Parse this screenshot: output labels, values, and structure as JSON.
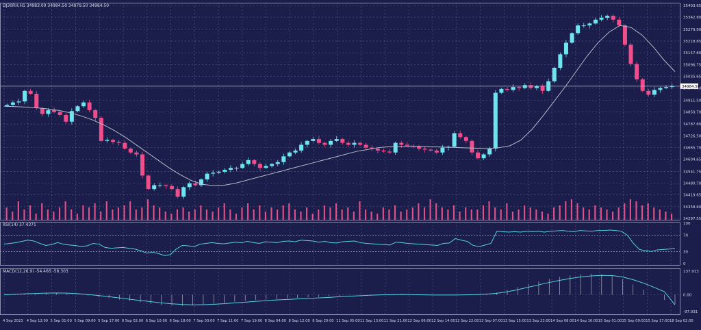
{
  "colors": {
    "background": "#1b1d4a",
    "grid": "#5b5f8e",
    "axis_text": "#d7d9ea",
    "bull": "#6ee4ef",
    "bear": "#f04d8b",
    "ma": "#b8b9c9",
    "volume": "#e0508a",
    "rsi_line": "#58d3e2",
    "macd_line": "#58d3e2",
    "macd_hist": "#c9cad6",
    "price_label_bg": "#ffffff",
    "price_label_fg": "#000000"
  },
  "chart_data": [
    {
      "type": "candlestick",
      "title": "DJ30RH,H1  34983.00 34984.50 34979.50 34984.50",
      "symbol_text": "DJ30RH,H1",
      "ohlc_text": "34983.00 34984.50 34979.50 34984.50",
      "last_price_label": "34984.50",
      "last_price": 34984.5,
      "ylim": [
        34297.55,
        35403.65
      ],
      "y_ticks": [
        "35403.65",
        "35342.80",
        "35279.90",
        "35218.85",
        "35157.80",
        "35096.75",
        "35035.65",
        "34974.60",
        "34911.50",
        "34850.70",
        "34787.80",
        "34726.50",
        "34665.70",
        "34604.65",
        "34541.75",
        "34480.70",
        "34419.65",
        "34358.60",
        "34297.55"
      ],
      "x_ticks": [
        "4 Sep 2023",
        "4 Sep 12:00",
        "5 Sep 01:00",
        "5 Sep 09:00",
        "5 Sep 17:00",
        "6 Sep 02:00",
        "6 Sep 10:00",
        "6 Sep 18:00",
        "7 Sep 03:00",
        "7 Sep 11:00",
        "7 Sep 19:00",
        "8 Sep 04:00",
        "8 Sep 12:00",
        "8 Sep 20:00",
        "11 Sep 05:00",
        "11 Sep 13:00",
        "11 Sep 21:00",
        "12 Sep 06:00",
        "12 Sep 14:00",
        "12 Sep 22:00",
        "13 Sep 07:00",
        "13 Sep 15:00",
        "13 Sep 23:00",
        "14 Sep 08:00",
        "14 Sep 16:00",
        "15 Sep 01:00",
        "15 Sep 09:00",
        "15 Sep 17:00",
        "18 Sep 02:00"
      ],
      "close_path": [
        34888,
        34900,
        34905,
        34960,
        34945,
        34870,
        34840,
        34860,
        34850,
        34835,
        34800,
        34855,
        34880,
        34900,
        34860,
        34820,
        34700,
        34705,
        34695,
        34690,
        34660,
        34640,
        34630,
        34520,
        34450,
        34470,
        34470,
        34465,
        34450,
        34410,
        34460,
        34480,
        34470,
        34500,
        34530,
        34535,
        34540,
        34550,
        34560,
        34560,
        34580,
        34600,
        34580,
        34560,
        34570,
        34580,
        34590,
        34620,
        34640,
        34650,
        34680,
        34700,
        34710,
        34690,
        34680,
        34700,
        34710,
        34690,
        34680,
        34690,
        34680,
        34665,
        34660,
        34650,
        34645,
        34640,
        34690,
        34680,
        34675,
        34670,
        34660,
        34655,
        34650,
        34640,
        34665,
        34670,
        34740,
        34720,
        34700,
        34640,
        34610,
        34630,
        34660,
        34950,
        34970,
        34965,
        34980,
        34975,
        34990,
        34975,
        34985,
        34960,
        35010,
        35080,
        35150,
        35210,
        35260,
        35300,
        35300,
        35310,
        35330,
        35340,
        35350,
        35330,
        35300,
        35200,
        35100,
        35020,
        34960,
        34940,
        34965,
        34975,
        34980,
        34984.5
      ],
      "moving_average": [
        34880,
        34878,
        34876,
        34872,
        34866,
        34858,
        34846,
        34830,
        34810,
        34785,
        34755,
        34720,
        34680,
        34640,
        34600,
        34560,
        34525,
        34495,
        34475,
        34468,
        34470,
        34480,
        34495,
        34510,
        34525,
        34540,
        34555,
        34570,
        34585,
        34600,
        34615,
        34630,
        34645,
        34655,
        34665,
        34670,
        34672,
        34673,
        34672,
        34670,
        34668,
        34666,
        34664,
        34662,
        34660,
        34665,
        34675,
        34705,
        34760,
        34830,
        34905,
        34980,
        35060,
        35140,
        35210,
        35265,
        35300,
        35290,
        35250,
        35190,
        35120,
        35060
      ],
      "volume_relative": [
        0.6,
        0.4,
        0.9,
        0.5,
        0.7,
        0.3,
        0.8,
        0.5,
        0.4,
        0.6,
        0.9,
        0.5,
        0.3,
        0.7,
        0.6,
        0.8,
        0.4,
        0.9,
        0.5,
        0.6,
        0.7,
        0.9,
        0.5,
        0.6,
        1.0,
        0.7,
        0.6,
        0.4,
        0.3,
        0.5,
        0.6,
        0.4,
        0.5,
        0.7,
        0.5,
        0.4,
        0.6,
        0.8,
        0.5,
        0.3,
        0.6,
        0.8,
        0.5,
        0.7,
        0.4,
        0.6,
        0.5,
        0.7,
        0.8,
        0.5,
        0.4,
        0.6,
        0.3,
        0.5,
        0.7,
        0.6,
        0.8,
        0.5,
        0.6,
        0.4,
        0.9,
        0.5,
        0.4,
        0.3,
        0.6,
        0.5,
        0.7,
        0.4,
        0.5,
        0.6,
        0.8,
        0.6,
        1.0,
        0.8,
        0.6,
        0.5,
        0.7,
        0.4,
        0.6,
        0.5,
        0.5,
        0.7,
        0.9,
        0.6,
        0.5,
        0.8,
        0.4,
        0.5,
        0.7,
        0.6,
        0.5,
        0.4,
        0.3,
        0.6,
        0.7,
        0.9,
        1.0,
        0.8,
        0.6,
        0.5,
        0.7,
        0.6,
        0.5,
        0.4,
        0.6,
        0.8,
        1.0,
        0.9,
        0.7,
        0.8,
        0.6,
        0.5,
        0.4,
        0.3
      ]
    },
    {
      "type": "line",
      "title": "RSI(14) 37.4371",
      "ylim": [
        0,
        100
      ],
      "y_ticks": [
        "100",
        "70",
        "30",
        "0"
      ],
      "levels": [
        70,
        30
      ],
      "values": [
        48,
        50,
        52,
        55,
        58,
        56,
        50,
        45,
        47,
        52,
        48,
        46,
        45,
        42,
        44,
        50,
        48,
        40,
        38,
        39,
        40,
        38,
        36,
        32,
        26,
        28,
        25,
        20,
        22,
        36,
        45,
        44,
        42,
        48,
        50,
        52,
        50,
        49,
        51,
        53,
        52,
        55,
        52,
        50,
        54,
        53,
        52,
        55,
        56,
        54,
        58,
        57,
        56,
        53,
        55,
        52,
        51,
        54,
        55,
        56,
        52,
        50,
        49,
        48,
        47,
        46,
        53,
        52,
        50,
        49,
        48,
        47,
        46,
        45,
        50,
        51,
        62,
        58,
        55,
        45,
        42,
        46,
        50,
        80,
        79,
        78,
        79,
        78,
        80,
        79,
        80,
        78,
        80,
        81,
        82,
        80,
        79,
        82,
        81,
        80,
        82,
        82,
        83,
        82,
        80,
        70,
        50,
        35,
        32,
        30,
        34,
        35,
        36,
        37.4371
      ]
    },
    {
      "type": "line",
      "title": "MACD(12,26,9) -54.466 -58.303",
      "ylim": [
        -97.031,
        137.913
      ],
      "y_ticks": [
        "137.913",
        "0.00",
        "-97.031"
      ],
      "values": [
        0,
        5,
        8,
        10,
        12,
        12,
        8,
        2,
        -5,
        -12,
        -20,
        -28,
        -36,
        -44,
        -52,
        -58,
        -62,
        -64,
        -62,
        -58,
        -52,
        -46,
        -40,
        -35,
        -30,
        -26,
        -23,
        -20,
        -18,
        -15,
        -12,
        -8,
        -5,
        -2,
        0,
        2,
        3,
        3,
        2,
        0,
        -1,
        -2,
        -2,
        -1,
        0,
        2,
        6,
        14,
        28,
        45,
        62,
        78,
        92,
        104,
        113,
        120,
        123,
        120,
        110,
        90,
        60,
        30,
        0,
        -30,
        -54.466
      ],
      "signal": [
        0,
        3,
        6,
        8,
        10,
        11,
        10,
        7,
        2,
        -4,
        -11,
        -18,
        -26,
        -33,
        -40,
        -47,
        -52,
        -56,
        -58,
        -57,
        -55,
        -51,
        -47,
        -43,
        -38,
        -34,
        -30,
        -27,
        -24,
        -21,
        -18,
        -15,
        -11,
        -8,
        -5,
        -2,
        0,
        1,
        2,
        1,
        0,
        -1,
        -1,
        -1,
        0,
        1,
        4,
        9,
        18,
        30,
        44,
        58,
        72,
        84,
        95,
        104,
        110,
        113,
        112,
        104,
        88,
        68,
        44,
        18,
        -58.303
      ]
    }
  ]
}
